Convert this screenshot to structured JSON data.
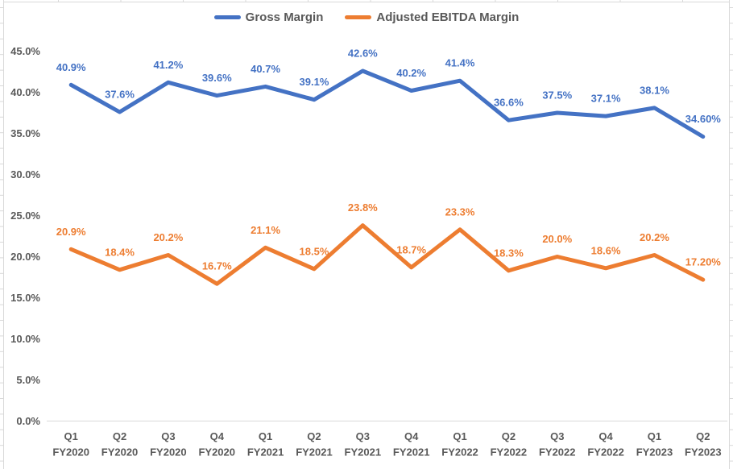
{
  "chart_data": {
    "type": "line",
    "title": "",
    "legend_position": "top",
    "grid": false,
    "categories": [
      {
        "quarter": "Q1",
        "fy": "FY2020"
      },
      {
        "quarter": "Q2",
        "fy": "FY2020"
      },
      {
        "quarter": "Q3",
        "fy": "FY2020"
      },
      {
        "quarter": "Q4",
        "fy": "FY2020"
      },
      {
        "quarter": "Q1",
        "fy": "FY2021"
      },
      {
        "quarter": "Q2",
        "fy": "FY2021"
      },
      {
        "quarter": "Q3",
        "fy": "FY2021"
      },
      {
        "quarter": "Q4",
        "fy": "FY2021"
      },
      {
        "quarter": "Q1",
        "fy": "FY2022"
      },
      {
        "quarter": "Q2",
        "fy": "FY2022"
      },
      {
        "quarter": "Q3",
        "fy": "FY2022"
      },
      {
        "quarter": "Q4",
        "fy": "FY2022"
      },
      {
        "quarter": "Q1",
        "fy": "FY2023"
      },
      {
        "quarter": "Q2",
        "fy": "FY2023"
      }
    ],
    "series": [
      {
        "name": "Gross Margin",
        "color": "#4472C4",
        "values": [
          40.9,
          37.6,
          41.2,
          39.6,
          40.7,
          39.1,
          42.6,
          40.2,
          41.4,
          36.6,
          37.5,
          37.1,
          38.1,
          34.6
        ],
        "labels": [
          "40.9%",
          "37.6%",
          "41.2%",
          "39.6%",
          "40.7%",
          "39.1%",
          "42.6%",
          "40.2%",
          "41.4%",
          "36.6%",
          "37.5%",
          "37.1%",
          "38.1%",
          "34.60%"
        ]
      },
      {
        "name": "Adjusted EBITDA Margin",
        "color": "#ED7D31",
        "values": [
          20.9,
          18.4,
          20.2,
          16.7,
          21.1,
          18.5,
          23.8,
          18.7,
          23.3,
          18.3,
          20.0,
          18.6,
          20.2,
          17.2
        ],
        "labels": [
          "20.9%",
          "18.4%",
          "20.2%",
          "16.7%",
          "21.1%",
          "18.5%",
          "23.8%",
          "18.7%",
          "23.3%",
          "18.3%",
          "20.0%",
          "18.6%",
          "20.2%",
          "17.20%"
        ]
      }
    ],
    "y_axis": {
      "min": 0,
      "max": 45,
      "step": 5,
      "ticks_top_to_bottom": [
        "45.0%",
        "40.0%",
        "35.0%",
        "30.0%",
        "25.0%",
        "20.0%",
        "15.0%",
        "10.0%",
        "5.0%",
        "0.0%"
      ]
    }
  },
  "colors": {
    "axis_text": "#595959",
    "axis_line": "#D9D9D9",
    "worksheet_grid": "#D9D9D9",
    "background": "#FFFFFF"
  }
}
